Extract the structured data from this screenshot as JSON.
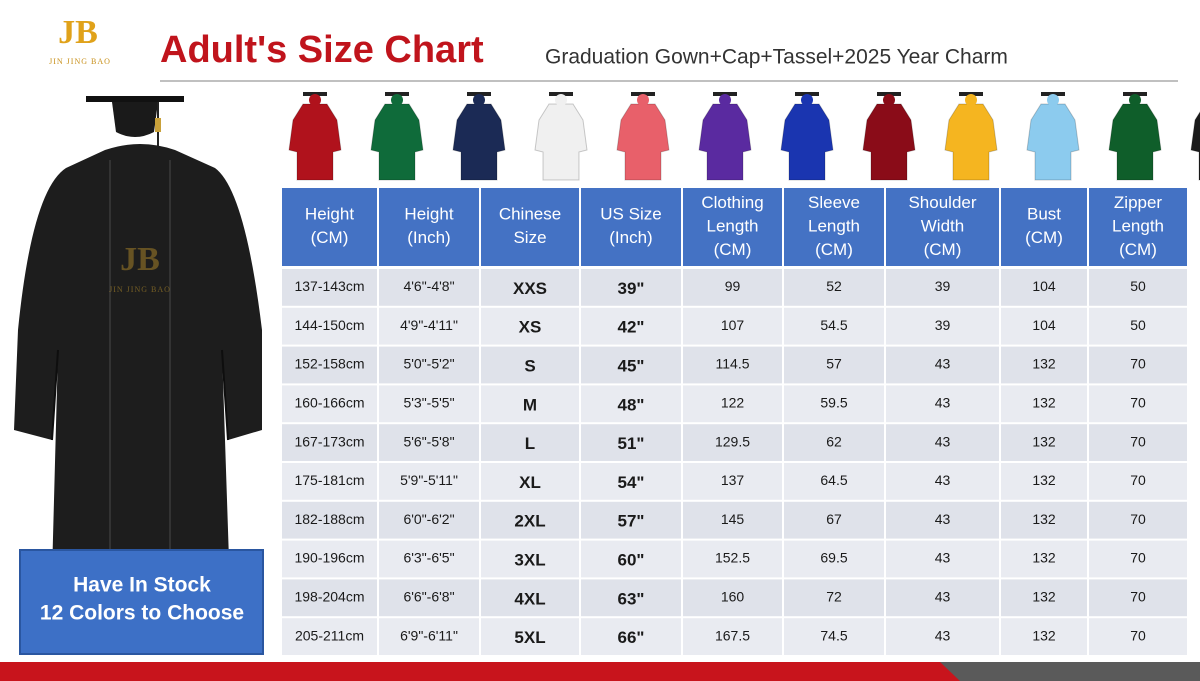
{
  "logo": {
    "mark": "JB",
    "name": "JIN JING BAO"
  },
  "header": {
    "title": "Adult's Size Chart",
    "subtitle": "Graduation Gown+Cap+Tassel+2025 Year Charm"
  },
  "stock_box": {
    "line1": "Have In Stock",
    "line2": "12 Colors to Choose"
  },
  "table": {
    "columns": [
      [
        "Height",
        "(CM)"
      ],
      [
        "Height",
        "(Inch)"
      ],
      [
        "Chinese",
        "Size"
      ],
      [
        "US Size",
        "(Inch)"
      ],
      [
        "Clothing",
        "Length",
        "(CM)"
      ],
      [
        "Sleeve",
        "Length",
        "(CM)"
      ],
      [
        "Shoulder",
        "Width",
        "(CM)"
      ],
      [
        "Bust",
        "(CM)"
      ],
      [
        "Zipper",
        "Length",
        "(CM)"
      ]
    ],
    "rows": [
      [
        "137-143cm",
        "4'6\"-4'8\"",
        "XXS",
        "39\"",
        "99",
        "52",
        "39",
        "104",
        "50"
      ],
      [
        "144-150cm",
        "4'9\"-4'11\"",
        "XS",
        "42\"",
        "107",
        "54.5",
        "39",
        "104",
        "50"
      ],
      [
        "152-158cm",
        "5'0\"-5'2\"",
        "S",
        "45\"",
        "114.5",
        "57",
        "43",
        "132",
        "70"
      ],
      [
        "160-166cm",
        "5'3\"-5'5\"",
        "M",
        "48\"",
        "122",
        "59.5",
        "43",
        "132",
        "70"
      ],
      [
        "167-173cm",
        "5'6\"-5'8\"",
        "L",
        "51\"",
        "129.5",
        "62",
        "43",
        "132",
        "70"
      ],
      [
        "175-181cm",
        "5'9\"-5'11\"",
        "XL",
        "54\"",
        "137",
        "64.5",
        "43",
        "132",
        "70"
      ],
      [
        "182-188cm",
        "6'0\"-6'2\"",
        "2XL",
        "57\"",
        "145",
        "67",
        "43",
        "132",
        "70"
      ],
      [
        "190-196cm",
        "6'3\"-6'5\"",
        "3XL",
        "60\"",
        "152.5",
        "69.5",
        "43",
        "132",
        "70"
      ],
      [
        "198-204cm",
        "6'6\"-6'8\"",
        "4XL",
        "63\"",
        "160",
        "72",
        "43",
        "132",
        "70"
      ],
      [
        "205-211cm",
        "6'9\"-6'11\"",
        "5XL",
        "66\"",
        "167.5",
        "74.5",
        "43",
        "132",
        "70"
      ]
    ]
  }
}
